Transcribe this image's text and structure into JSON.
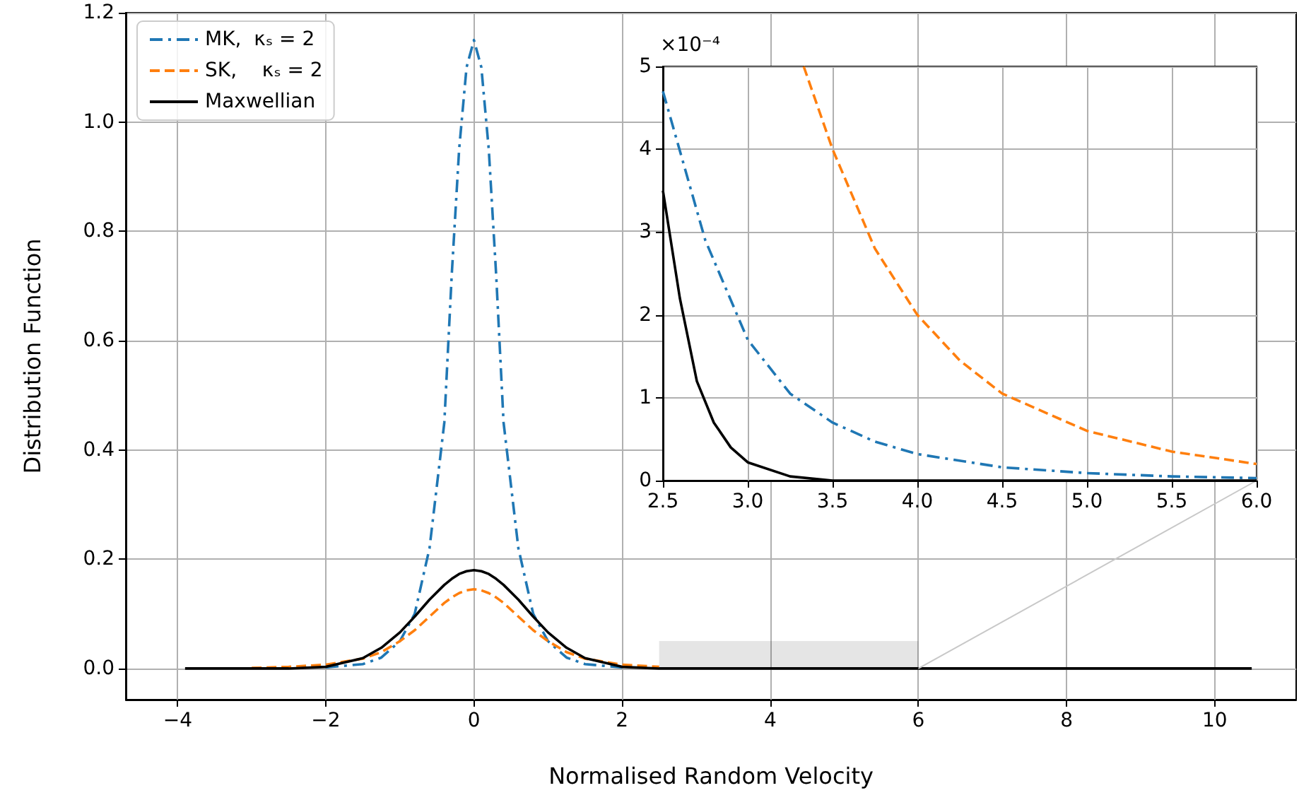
{
  "chart_data": [
    {
      "type": "line",
      "xlabel": "Normalised Random Velocity",
      "ylabel": "Distribution Function",
      "xlim": [
        -4.7,
        11.1
      ],
      "ylim": [
        -0.057,
        1.2
      ],
      "xticks": [
        {
          "value": -4,
          "label": "−4"
        },
        {
          "value": -2,
          "label": "−2"
        },
        0,
        2,
        4,
        6,
        8,
        10
      ],
      "yticks": [
        {
          "value": 0,
          "label": "0.0"
        },
        0.2,
        0.4,
        0.6,
        0.8,
        {
          "value": 1,
          "label": "1.0"
        },
        1.2
      ],
      "grid": true,
      "legend": "top left",
      "marker": "none",
      "series": [
        {
          "name": "MK,  κₛ = 2",
          "color": "#1f77b4",
          "line_style": "dashdot",
          "x": [
            -2,
            -1.5,
            -1.25,
            -1,
            -0.8,
            -0.6,
            -0.4,
            -0.3,
            -0.2,
            -0.1,
            0,
            0.1,
            0.2,
            0.3,
            0.4,
            0.6,
            0.8,
            1,
            1.25,
            1.5,
            2
          ],
          "values": [
            0.002,
            0.008,
            0.02,
            0.05,
            0.1,
            0.22,
            0.45,
            0.72,
            0.95,
            1.1,
            1.15,
            1.1,
            0.95,
            0.72,
            0.45,
            0.22,
            0.1,
            0.05,
            0.02,
            0.008,
            0.002
          ]
        },
        {
          "name": "SK,    κₛ = 2",
          "color": "#ff7f0e",
          "line_style": "dashed",
          "x": [
            -3,
            -2.5,
            -2,
            -1.5,
            -1.25,
            -1,
            -0.8,
            -0.6,
            -0.4,
            -0.3,
            -0.2,
            -0.1,
            0,
            0.1,
            0.2,
            0.3,
            0.4,
            0.6,
            0.8,
            1,
            1.25,
            1.5,
            2,
            2.5
          ],
          "values": [
            0.001,
            0.003,
            0.007,
            0.018,
            0.03,
            0.05,
            0.07,
            0.095,
            0.12,
            0.13,
            0.138,
            0.143,
            0.145,
            0.143,
            0.138,
            0.13,
            0.12,
            0.095,
            0.07,
            0.05,
            0.03,
            0.018,
            0.007,
            0.003
          ]
        },
        {
          "name": "Maxwellian",
          "color": "#000000",
          "line_style": "solid",
          "x": [
            -3.9,
            -3,
            -2.5,
            -2,
            -1.5,
            -1.25,
            -1,
            -0.8,
            -0.6,
            -0.4,
            -0.3,
            -0.2,
            -0.1,
            0,
            0.1,
            0.2,
            0.3,
            0.4,
            0.6,
            0.8,
            1,
            1.25,
            1.5,
            2,
            2.5,
            3,
            4,
            6,
            8,
            10.5
          ],
          "values": [
            0,
            0,
            0,
            0.003,
            0.019,
            0.038,
            0.066,
            0.095,
            0.126,
            0.153,
            0.164,
            0.173,
            0.178,
            0.18,
            0.178,
            0.173,
            0.164,
            0.153,
            0.126,
            0.095,
            0.066,
            0.038,
            0.019,
            0.003,
            0,
            0,
            0,
            0,
            0,
            0
          ]
        }
      ]
    },
    {
      "type": "line",
      "xlim": [
        2.5,
        6
      ],
      "ylim": [
        0,
        5
      ],
      "xticks": [
        2.5,
        {
          "value": 3,
          "label": "3.0"
        },
        3.5,
        {
          "value": 4,
          "label": "4.0"
        },
        4.5,
        {
          "value": 5,
          "label": "5.0"
        },
        5.5,
        {
          "value": 6,
          "label": "6.0"
        }
      ],
      "yticks": [
        0,
        1,
        2,
        3,
        4,
        5
      ],
      "annotations": [
        "×10⁻⁴"
      ],
      "grid": true,
      "marker": "none",
      "series": [
        {
          "color": "#1f77b4",
          "line_style": "dashdot",
          "x": [
            2.5,
            2.75,
            3,
            3.25,
            3.5,
            3.75,
            4,
            4.5,
            5,
            5.5,
            6
          ],
          "values": [
            4.7,
            2.9,
            1.7,
            1.05,
            0.7,
            0.47,
            0.32,
            0.16,
            0.09,
            0.05,
            0.03
          ]
        },
        {
          "color": "#ff7f0e",
          "line_style": "dashed",
          "x": [
            3.33,
            3.5,
            3.75,
            4,
            4.25,
            4.5,
            5,
            5.5,
            6
          ],
          "values": [
            5,
            4,
            2.8,
            2,
            1.45,
            1.05,
            0.6,
            0.35,
            0.2
          ]
        },
        {
          "color": "#000000",
          "line_style": "solid",
          "x": [
            2.5,
            2.6,
            2.7,
            2.8,
            2.9,
            3,
            3.25,
            3.5,
            4,
            5,
            6
          ],
          "values": [
            3.5,
            2.2,
            1.2,
            0.7,
            0.4,
            0.22,
            0.05,
            0,
            0,
            0,
            0
          ]
        }
      ]
    }
  ]
}
